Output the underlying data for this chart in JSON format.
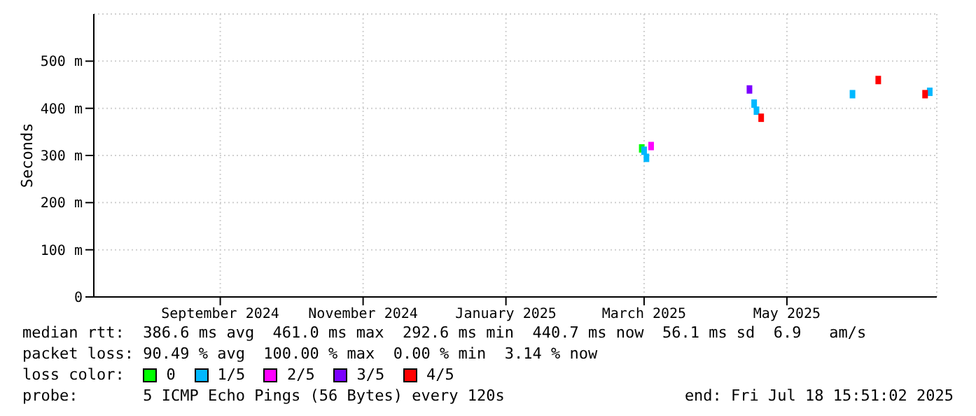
{
  "chart_data": {
    "type": "scatter",
    "ylabel": "Seconds",
    "legend_title": "loss color:",
    "legend": "bottom",
    "grid": true,
    "marker": "square",
    "xlim": [
      "2024-07-23",
      "2025-07-18"
    ],
    "xticks": [
      {
        "value": "2024-09-15",
        "label": "September 2024"
      },
      {
        "value": "2024-11-15",
        "label": "November 2024"
      },
      {
        "value": "2025-01-15",
        "label": "January 2025"
      },
      {
        "value": "2025-03-15",
        "label": "March 2025"
      },
      {
        "value": "2025-05-15",
        "label": "May 2025"
      }
    ],
    "ylim": [
      0,
      600
    ],
    "yticks": [
      0,
      {
        "value": 100,
        "label": "100 m"
      },
      {
        "value": 200,
        "label": "200 m"
      },
      {
        "value": 300,
        "label": "300 m"
      },
      {
        "value": 400,
        "label": "400 m"
      },
      {
        "value": 500,
        "label": "500 m"
      }
    ],
    "series": [
      {
        "name": "0",
        "color": "#00ff00",
        "x": [
          "2025-03-14"
        ],
        "values": [
          315
        ]
      },
      {
        "name": "1/5",
        "color": "#00b8ff",
        "x": [
          "2025-03-15",
          "2025-03-16",
          "2025-05-01",
          "2025-05-02",
          "2025-06-12",
          "2025-07-15"
        ],
        "values": [
          310,
          295,
          410,
          395,
          430,
          435
        ]
      },
      {
        "name": "2/5",
        "color": "#ff00ff",
        "x": [
          "2025-03-18"
        ],
        "values": [
          320
        ]
      },
      {
        "name": "3/5",
        "color": "#7b00ff",
        "x": [
          "2025-04-29"
        ],
        "values": [
          440
        ]
      },
      {
        "name": "4/5",
        "color": "#ff0000",
        "x": [
          "2025-05-04",
          "2025-06-23",
          "2025-07-13"
        ],
        "values": [
          380,
          460,
          430
        ]
      }
    ],
    "annotations": [
      "median rtt:  386.6 ms avg  461.0 ms max  292.6 ms min  440.7 ms now  56.1 ms sd  6.9   am/s",
      "packet loss: 90.49 % avg  100.00 % max  0.00 % min  3.14 % now",
      "probe:       5 ICMP Echo Pings (56 Bytes) every 120s",
      "end: Fri Jul 18 15:51:02 2025"
    ]
  }
}
